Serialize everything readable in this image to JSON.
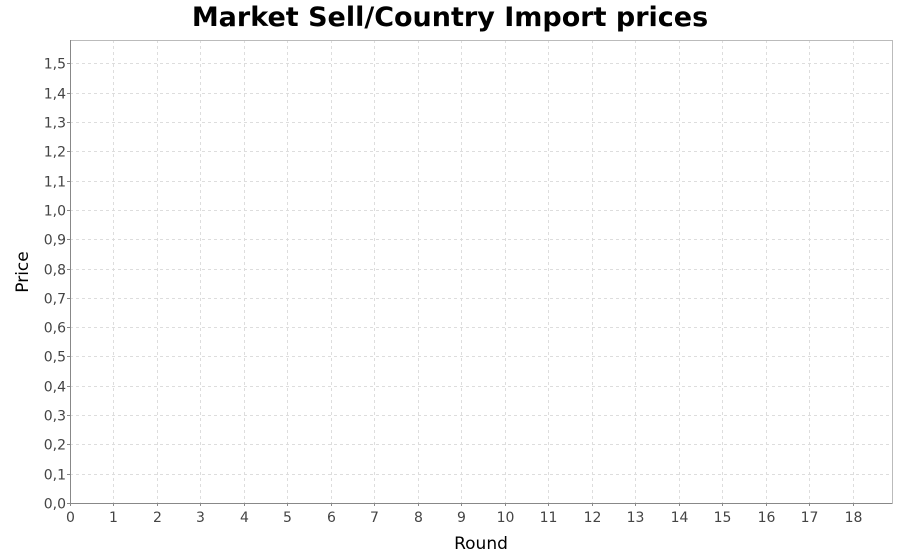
{
  "chart_data": {
    "type": "line",
    "title": "Market Sell/Country Import prices",
    "xlabel": "Round",
    "ylabel": "Price",
    "xlim": [
      0,
      18.9
    ],
    "ylim": [
      0,
      1.58
    ],
    "x_ticks": [
      "0",
      "1",
      "2",
      "3",
      "4",
      "5",
      "6",
      "7",
      "8",
      "9",
      "10",
      "11",
      "12",
      "13",
      "14",
      "15",
      "16",
      "17",
      "18"
    ],
    "y_ticks": [
      "0,0",
      "0,1",
      "0,2",
      "0,3",
      "0,4",
      "0,5",
      "0,6",
      "0,7",
      "0,8",
      "0,9",
      "1,0",
      "1,1",
      "1,2",
      "1,3",
      "1,4",
      "1,5"
    ],
    "grid": true,
    "series": [],
    "colors": {
      "grid": "#dddddd",
      "axis": "#888888",
      "border": "#bbbbbb"
    }
  }
}
